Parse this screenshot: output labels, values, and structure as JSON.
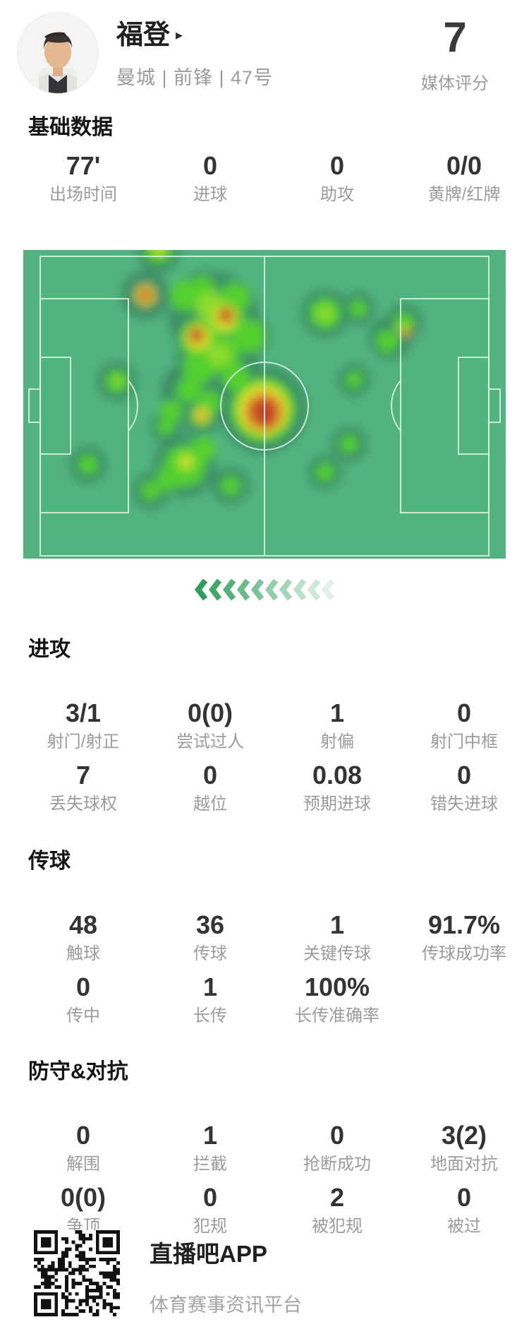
{
  "header": {
    "player_name": "福登",
    "name_arrow": "▸",
    "team_position": "曼城 | 前锋 | 47号",
    "rating_value": "7",
    "rating_label": "媒体评分"
  },
  "sections": [
    {
      "title": "基础数据",
      "css": "t-basic",
      "rows": [
        [
          {
            "value": "77'",
            "label": "出场时间"
          },
          {
            "value": "0",
            "label": "进球"
          },
          {
            "value": "0",
            "label": "助攻"
          },
          {
            "value": "0/0",
            "label": "黄牌/红牌"
          }
        ]
      ]
    },
    {
      "title": "进攻",
      "css": "t-attack",
      "rows": [
        [
          {
            "value": "3/1",
            "label": "射门/射正"
          },
          {
            "value": "0(0)",
            "label": "尝试过人"
          },
          {
            "value": "1",
            "label": "射偏"
          },
          {
            "value": "0",
            "label": "射门中框"
          }
        ],
        [
          {
            "value": "7",
            "label": "丢失球权"
          },
          {
            "value": "0",
            "label": "越位"
          },
          {
            "value": "0.08",
            "label": "预期进球"
          },
          {
            "value": "0",
            "label": "错失进球"
          }
        ]
      ]
    },
    {
      "title": "传球",
      "css": "t-pass",
      "rows": [
        [
          {
            "value": "48",
            "label": "触球"
          },
          {
            "value": "36",
            "label": "传球"
          },
          {
            "value": "1",
            "label": "关键传球"
          },
          {
            "value": "91.7%",
            "label": "传球成功率"
          }
        ],
        [
          {
            "value": "0",
            "label": "传中"
          },
          {
            "value": "1",
            "label": "长传"
          },
          {
            "value": "100%",
            "label": "长传准确率"
          },
          null
        ]
      ]
    },
    {
      "title": "防守&对抗",
      "css": "t-def",
      "rows": [
        [
          {
            "value": "0",
            "label": "解围"
          },
          {
            "value": "1",
            "label": "拦截"
          },
          {
            "value": "0",
            "label": "抢断成功"
          },
          {
            "value": "3(2)",
            "label": "地面对抗"
          }
        ],
        [
          {
            "value": "0(0)",
            "label": "争顶"
          },
          {
            "value": "0",
            "label": "犯规"
          },
          {
            "value": "2",
            "label": "被犯规"
          },
          {
            "value": "0",
            "label": "被过"
          }
        ]
      ]
    }
  ],
  "heatmap": {
    "type": "position-heatmap",
    "pitch_color": "#52b37e",
    "line_color": "#dff3e7",
    "palette": {
      "halo": "#3e8c66",
      "g": "#52d02f",
      "yg": "#8edc2e",
      "y": "#d9e32f",
      "o": "#e2902d",
      "r": "#c2452c"
    },
    "blobs": [
      [
        192,
        2,
        30,
        "halo"
      ],
      [
        173,
        64,
        34,
        "halo"
      ],
      [
        270,
        95,
        64,
        "halo"
      ],
      [
        275,
        155,
        58,
        "halo"
      ],
      [
        235,
        200,
        40,
        "halo"
      ],
      [
        133,
        186,
        28,
        "halo"
      ],
      [
        202,
        251,
        22,
        "halo"
      ],
      [
        253,
        234,
        28,
        "halo"
      ],
      [
        340,
        226,
        62,
        "halo"
      ],
      [
        229,
        306,
        44,
        "halo"
      ],
      [
        92,
        304,
        26,
        "halo"
      ],
      [
        181,
        341,
        26,
        "halo"
      ],
      [
        294,
        334,
        26,
        "halo"
      ],
      [
        428,
        90,
        34,
        "halo"
      ],
      [
        475,
        83,
        24,
        "halo"
      ],
      [
        520,
        125,
        30,
        "halo"
      ],
      [
        540,
        103,
        26,
        "halo"
      ],
      [
        469,
        184,
        23,
        "halo"
      ],
      [
        462,
        275,
        25,
        "halo"
      ],
      [
        428,
        315,
        24,
        "halo"
      ],
      [
        255,
        55,
        26,
        "halo"
      ],
      [
        320,
        122,
        30,
        "halo"
      ],
      [
        192,
        -2,
        20,
        "g"
      ],
      [
        255,
        55,
        18,
        "g"
      ],
      [
        230,
        65,
        22,
        "g"
      ],
      [
        300,
        68,
        22,
        "g"
      ],
      [
        285,
        95,
        26,
        "g"
      ],
      [
        320,
        122,
        24,
        "g"
      ],
      [
        250,
        125,
        28,
        "g"
      ],
      [
        280,
        148,
        26,
        "g"
      ],
      [
        250,
        165,
        24,
        "g"
      ],
      [
        300,
        178,
        20,
        "g"
      ],
      [
        235,
        198,
        18,
        "g"
      ],
      [
        265,
        215,
        16,
        "g"
      ],
      [
        210,
        228,
        16,
        "g"
      ],
      [
        133,
        186,
        16,
        "g"
      ],
      [
        253,
        234,
        16,
        "g"
      ],
      [
        202,
        251,
        12,
        "g"
      ],
      [
        340,
        226,
        46,
        "g"
      ],
      [
        229,
        306,
        30,
        "g"
      ],
      [
        255,
        282,
        18,
        "g"
      ],
      [
        205,
        325,
        16,
        "g"
      ],
      [
        181,
        341,
        14,
        "g"
      ],
      [
        92,
        304,
        14,
        "g"
      ],
      [
        294,
        334,
        14,
        "g"
      ],
      [
        428,
        90,
        22,
        "g"
      ],
      [
        475,
        83,
        13,
        "g"
      ],
      [
        516,
        129,
        16,
        "g"
      ],
      [
        540,
        103,
        14,
        "g"
      ],
      [
        469,
        184,
        12,
        "g"
      ],
      [
        462,
        275,
        13,
        "g"
      ],
      [
        428,
        315,
        13,
        "g"
      ],
      [
        265,
        80,
        20,
        "yg"
      ],
      [
        278,
        148,
        16,
        "yg"
      ],
      [
        133,
        186,
        7,
        "yg"
      ],
      [
        428,
        90,
        11,
        "yg"
      ],
      [
        540,
        112,
        9,
        "yg"
      ],
      [
        230,
        300,
        13,
        "yg"
      ],
      [
        192,
        -2,
        8,
        "y"
      ],
      [
        285,
        98,
        17,
        "y"
      ],
      [
        248,
        124,
        18,
        "y"
      ],
      [
        173,
        64,
        15,
        "y"
      ],
      [
        287,
        94,
        16,
        "y"
      ],
      [
        340,
        226,
        36,
        "y"
      ],
      [
        253,
        234,
        11,
        "y"
      ],
      [
        232,
        300,
        8,
        "y"
      ],
      [
        173,
        64,
        11,
        "o"
      ],
      [
        287,
        93,
        12,
        "o"
      ],
      [
        246,
        121,
        12,
        "o"
      ],
      [
        341,
        229,
        28,
        "o"
      ],
      [
        253,
        235,
        6,
        "o"
      ],
      [
        543,
        116,
        6,
        "o"
      ],
      [
        173,
        64,
        6,
        "r"
      ],
      [
        287,
        92,
        9,
        "r"
      ],
      [
        246,
        121,
        9,
        "r"
      ],
      [
        341,
        229,
        19,
        "r"
      ],
      [
        347,
        242,
        10,
        "r"
      ]
    ]
  },
  "chevrons": {
    "count": 10,
    "color": "#2f9e5b",
    "direction": "left"
  },
  "footer": {
    "app_name": "直播吧APP",
    "app_desc": "体育赛事资讯平台",
    "qr_icon": "qr-code"
  }
}
